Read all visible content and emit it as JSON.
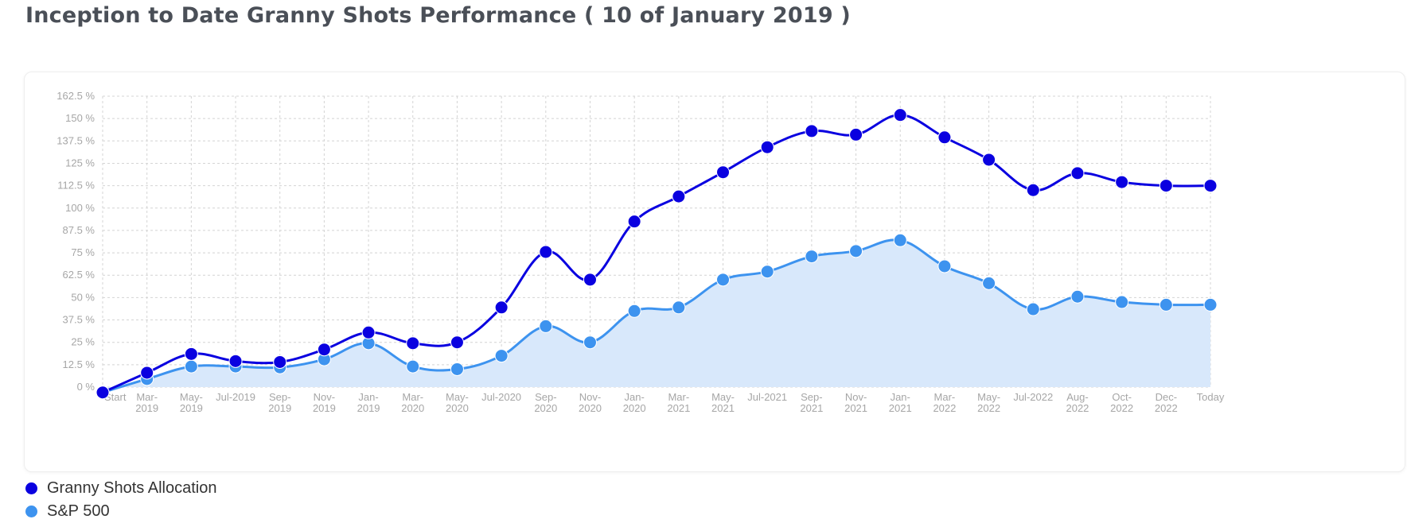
{
  "header": {
    "title": "Inception to Date Granny Shots Performance ( 10 of January 2019 )"
  },
  "chart_data": {
    "type": "line",
    "title": "Inception to Date Granny Shots Performance ( 10 of January 2019 )",
    "categories": [
      [
        "Start"
      ],
      [
        "Mar-",
        "2019"
      ],
      [
        "May-",
        "2019"
      ],
      [
        "Jul-2019"
      ],
      [
        "Sep-",
        "2019"
      ],
      [
        "Nov-",
        "2019"
      ],
      [
        "Jan-",
        "2019"
      ],
      [
        "Mar-",
        "2020"
      ],
      [
        "May-",
        "2020"
      ],
      [
        "Jul-2020"
      ],
      [
        "Sep-",
        "2020"
      ],
      [
        "Nov-",
        "2020"
      ],
      [
        "Jan-",
        "2020"
      ],
      [
        "Mar-",
        "2021"
      ],
      [
        "May-",
        "2021"
      ],
      [
        "Jul-2021"
      ],
      [
        "Sep-",
        "2021"
      ],
      [
        "Nov-",
        "2021"
      ],
      [
        "Jan-",
        "2021"
      ],
      [
        "Mar-",
        "2022"
      ],
      [
        "May-",
        "2022"
      ],
      [
        "Jul-2022"
      ],
      [
        "Aug-",
        "2022"
      ],
      [
        "Oct-",
        "2022"
      ],
      [
        "Dec-",
        "2022"
      ],
      [
        "Today"
      ]
    ],
    "yticks": [
      "0 %",
      "12.5 %",
      "25 %",
      "37.5 %",
      "50 %",
      "62.5 %",
      "75 %",
      "87.5 %",
      "100 %",
      "112.5 %",
      "125 %",
      "137.5 %",
      "150 %",
      "162.5 %"
    ],
    "ylim": [
      0,
      162.5
    ],
    "grid": true,
    "series": [
      {
        "name": "Granny Shots Allocation",
        "color": "#0a00e0",
        "values": [
          -3,
          8,
          18.5,
          14.5,
          14,
          21,
          30.5,
          24.5,
          25,
          44.5,
          75.5,
          60,
          92.5,
          106.5,
          120,
          134,
          143,
          141,
          152,
          139.5,
          127,
          110,
          119.5,
          114.5,
          112.5,
          112.5
        ]
      },
      {
        "name": "S&P 500",
        "color": "#3d93ef",
        "values": [
          -3,
          4.5,
          11.5,
          11.5,
          11,
          15.5,
          24.5,
          11.5,
          10,
          17.5,
          34,
          25,
          42.5,
          44.5,
          60,
          64.5,
          73,
          76,
          82,
          67.5,
          58,
          43.5,
          50.5,
          47.5,
          46,
          46
        ]
      }
    ]
  },
  "legend": [
    {
      "label": "Granny Shots Allocation",
      "color": "#0a00e0"
    },
    {
      "label": "S&P 500",
      "color": "#3d93ef"
    }
  ]
}
